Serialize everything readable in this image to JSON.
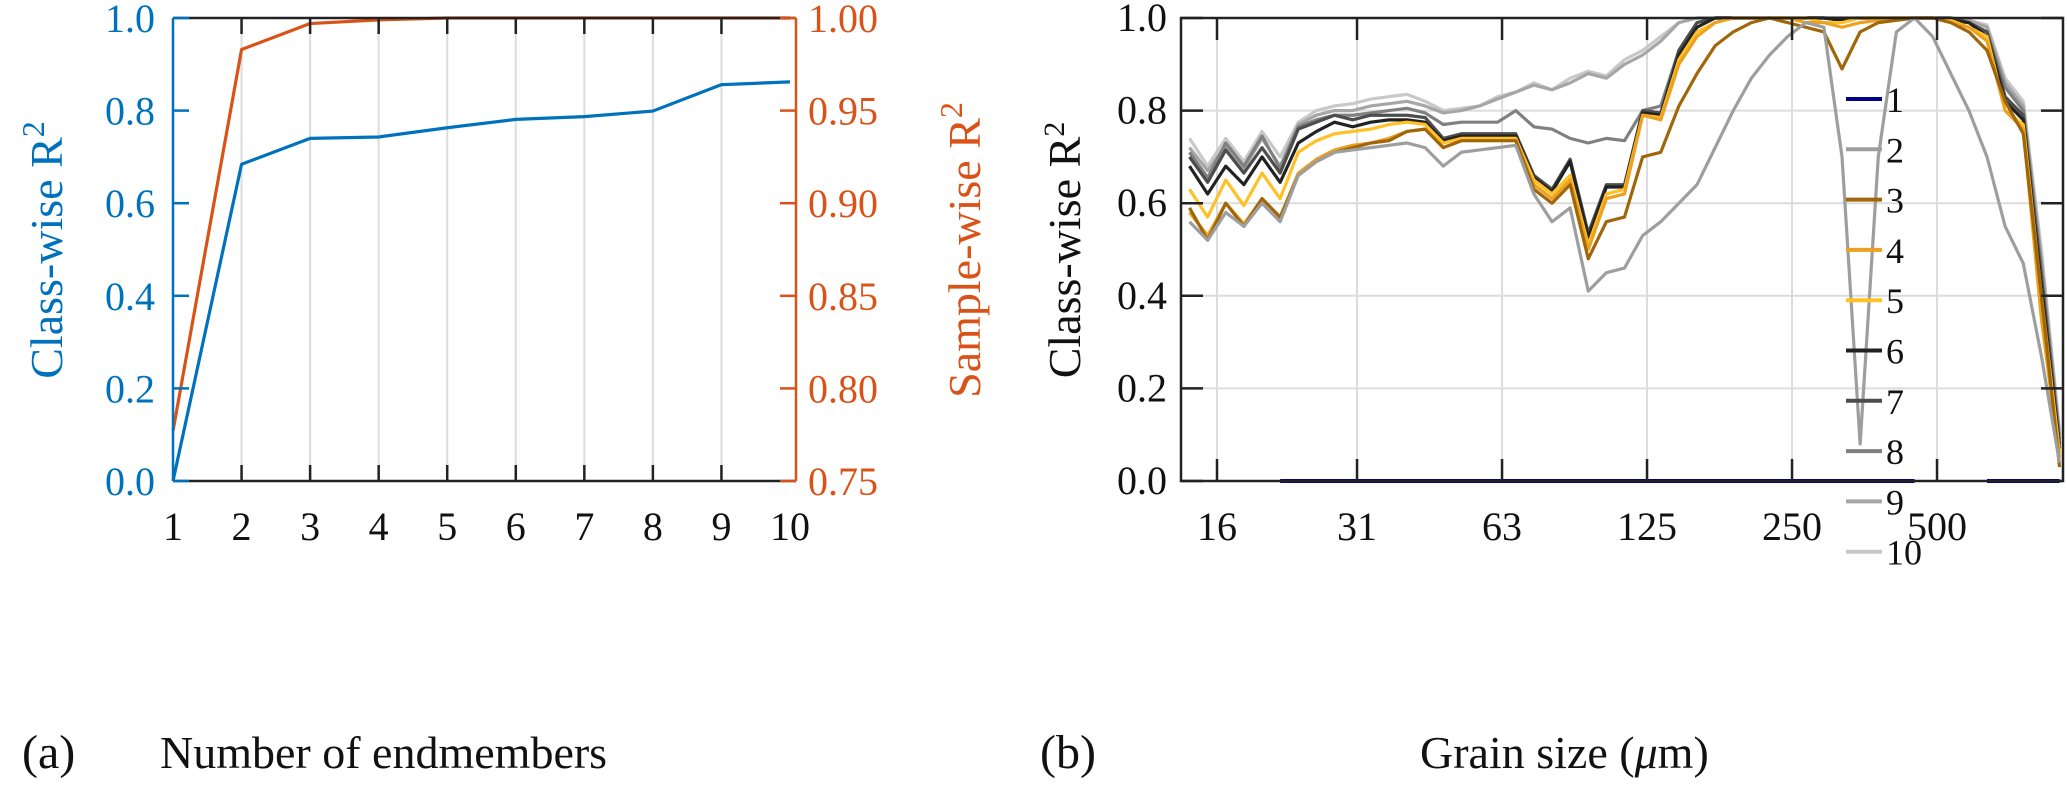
{
  "chart_data": [
    {
      "panel": "(a)",
      "type": "line",
      "title": "",
      "xlabel": "Number of endmembers",
      "ylabel_left": "Class-wise R",
      "ylabel_left_sup": "2",
      "ylabel_right": "Sample-wise R",
      "ylabel_right_sup": "2",
      "x": [
        1,
        2,
        3,
        4,
        5,
        6,
        7,
        8,
        9,
        10
      ],
      "xlim": [
        1,
        10
      ],
      "xticks": [
        "1",
        "2",
        "3",
        "4",
        "5",
        "6",
        "7",
        "8",
        "9",
        "10"
      ],
      "ylim_left": [
        0,
        1
      ],
      "yticks_left": [
        "0.0",
        "0.2",
        "0.4",
        "0.6",
        "0.8",
        "1.0"
      ],
      "ylim_right": [
        0.75,
        1.0
      ],
      "yticks_right": [
        "0.75",
        "0.80",
        "0.85",
        "0.90",
        "0.95",
        "1.00"
      ],
      "grid": "vertical",
      "series": [
        {
          "name": "Class-wise R2",
          "axis": "left",
          "color": "#0072BD",
          "values": [
            0.0,
            0.684,
            0.74,
            0.743,
            0.763,
            0.781,
            0.787,
            0.799,
            0.856,
            0.862
          ]
        },
        {
          "name": "Sample-wise R2",
          "axis": "right",
          "color": "#D95319",
          "values": [
            0.777,
            0.983,
            0.997,
            0.999,
            1.0,
            1.0,
            1.0,
            1.0,
            1.0,
            1.0
          ]
        }
      ]
    },
    {
      "panel": "(b)",
      "type": "line",
      "title": "",
      "xlabel": "Grain size (",
      "xlabel_mu": "μ",
      "xlabel_tail": "m)",
      "ylabel": "Class-wise R",
      "ylabel_sup": "2",
      "xscale": "log2",
      "xlim_um": [
        13.5,
        1000
      ],
      "xticks": [
        "16",
        "31",
        "63",
        "125",
        "250",
        "500"
      ],
      "xtick_values_um": [
        16,
        31.25,
        62.5,
        125,
        250,
        500
      ],
      "ylim": [
        0,
        1
      ],
      "yticks": [
        "0.0",
        "0.2",
        "0.4",
        "0.6",
        "0.8",
        "1.0"
      ],
      "grid": "both",
      "legend_position": "center-right",
      "points_per_octave": 8,
      "first_point_um": 14.03,
      "series": [
        {
          "name": "1",
          "color": "#00008B",
          "segments": [
            [
              5,
              40
            ],
            [
              44,
              48
            ]
          ],
          "constant": 0.0
        },
        {
          "name": "2",
          "color": "#9E9E9E",
          "values": [
            0.56,
            0.52,
            0.58,
            0.55,
            0.6,
            0.56,
            0.66,
            0.69,
            0.71,
            0.715,
            0.72,
            0.725,
            0.73,
            0.72,
            0.68,
            0.71,
            0.715,
            0.72,
            0.725,
            0.62,
            0.56,
            0.59,
            0.41,
            0.45,
            0.46,
            0.53,
            0.56,
            0.6,
            0.64,
            0.72,
            0.8,
            0.87,
            0.92,
            0.96,
            0.99,
            0.98,
            0.7,
            0.08,
            0.7,
            0.97,
            1.0,
            0.96,
            0.88,
            0.8,
            0.7,
            0.55,
            0.47,
            0.27,
            0.04
          ]
        },
        {
          "name": "3",
          "color": "#A0660A",
          "values": [
            0.59,
            0.52,
            0.6,
            0.55,
            0.61,
            0.57,
            0.66,
            0.69,
            0.71,
            0.72,
            0.73,
            0.735,
            0.755,
            0.76,
            0.72,
            0.735,
            0.735,
            0.735,
            0.735,
            0.63,
            0.6,
            0.64,
            0.48,
            0.56,
            0.57,
            0.7,
            0.71,
            0.81,
            0.88,
            0.94,
            0.97,
            0.99,
            1.0,
            0.99,
            0.98,
            0.97,
            0.89,
            0.97,
            0.99,
            0.995,
            1.0,
            1.0,
            0.99,
            0.97,
            0.93,
            0.82,
            0.75,
            0.4,
            0.03
          ]
        },
        {
          "name": "4",
          "color": "#EDA120",
          "values": [
            0.58,
            0.53,
            0.6,
            0.555,
            0.61,
            0.57,
            0.665,
            0.695,
            0.715,
            0.725,
            0.73,
            0.74,
            0.755,
            0.76,
            0.72,
            0.735,
            0.735,
            0.735,
            0.735,
            0.64,
            0.61,
            0.65,
            0.5,
            0.61,
            0.62,
            0.79,
            0.78,
            0.9,
            0.96,
            0.99,
            1.0,
            1.0,
            1.0,
            1.0,
            0.99,
            0.99,
            0.98,
            0.99,
            0.995,
            1.0,
            1.0,
            1.0,
            0.99,
            0.98,
            0.95,
            0.8,
            0.76,
            0.35,
            0.05
          ]
        },
        {
          "name": "5",
          "color": "#FFC125",
          "values": [
            0.63,
            0.57,
            0.65,
            0.595,
            0.665,
            0.61,
            0.71,
            0.735,
            0.75,
            0.755,
            0.76,
            0.77,
            0.775,
            0.77,
            0.73,
            0.74,
            0.74,
            0.74,
            0.74,
            0.65,
            0.62,
            0.66,
            0.51,
            0.62,
            0.63,
            0.79,
            0.785,
            0.91,
            0.97,
            0.99,
            1.0,
            1.0,
            1.0,
            1.0,
            1.0,
            0.99,
            0.99,
            1.0,
            1.0,
            1.0,
            1.0,
            1.0,
            0.995,
            0.98,
            0.96,
            0.8,
            0.77,
            0.4,
            0.06
          ]
        },
        {
          "name": "6",
          "color": "#222222",
          "values": [
            0.68,
            0.62,
            0.68,
            0.64,
            0.7,
            0.645,
            0.73,
            0.755,
            0.775,
            0.765,
            0.775,
            0.78,
            0.78,
            0.775,
            0.735,
            0.745,
            0.745,
            0.745,
            0.745,
            0.655,
            0.625,
            0.69,
            0.525,
            0.635,
            0.635,
            0.795,
            0.79,
            0.92,
            0.98,
            1.0,
            1.0,
            1.0,
            1.0,
            1.0,
            1.0,
            1.0,
            0.995,
            1.0,
            1.0,
            1.0,
            1.0,
            1.0,
            0.995,
            0.99,
            0.96,
            0.82,
            0.78,
            0.42,
            0.07
          ]
        },
        {
          "name": "7",
          "color": "#4D4D4D",
          "values": [
            0.7,
            0.645,
            0.715,
            0.665,
            0.72,
            0.665,
            0.76,
            0.775,
            0.79,
            0.78,
            0.79,
            0.79,
            0.79,
            0.785,
            0.74,
            0.75,
            0.75,
            0.75,
            0.75,
            0.66,
            0.63,
            0.695,
            0.535,
            0.64,
            0.64,
            0.8,
            0.795,
            0.93,
            0.99,
            1.0,
            1.0,
            1.0,
            1.0,
            1.0,
            1.0,
            1.0,
            0.995,
            1.0,
            1.0,
            1.0,
            1.0,
            1.0,
            1.0,
            0.99,
            0.97,
            0.83,
            0.79,
            0.44,
            0.08
          ]
        },
        {
          "name": "8",
          "color": "#808080",
          "values": [
            0.71,
            0.655,
            0.73,
            0.68,
            0.745,
            0.675,
            0.765,
            0.78,
            0.79,
            0.79,
            0.795,
            0.8,
            0.805,
            0.795,
            0.77,
            0.775,
            0.775,
            0.775,
            0.8,
            0.765,
            0.76,
            0.74,
            0.73,
            0.74,
            0.735,
            0.8,
            0.81,
            0.93,
            0.99,
            1.0,
            1.0,
            1.0,
            1.0,
            1.0,
            1.0,
            1.0,
            1.0,
            1.0,
            1.0,
            1.0,
            1.0,
            1.0,
            1.0,
            0.99,
            0.97,
            0.85,
            0.8,
            0.46,
            0.09
          ]
        },
        {
          "name": "9",
          "color": "#A6A6A6",
          "values": [
            0.72,
            0.67,
            0.725,
            0.675,
            0.74,
            0.68,
            0.77,
            0.79,
            0.8,
            0.8,
            0.81,
            0.815,
            0.82,
            0.81,
            0.795,
            0.8,
            0.81,
            0.825,
            0.84,
            0.855,
            0.845,
            0.86,
            0.88,
            0.87,
            0.9,
            0.92,
            0.95,
            0.99,
            1.0,
            1.0,
            1.0,
            1.0,
            1.0,
            1.0,
            1.0,
            1.0,
            1.0,
            1.0,
            1.0,
            1.0,
            1.0,
            1.0,
            1.0,
            0.995,
            0.98,
            0.86,
            0.81,
            0.48,
            0.1
          ]
        },
        {
          "name": "10",
          "color": "#C8C8C8",
          "values": [
            0.74,
            0.68,
            0.74,
            0.69,
            0.755,
            0.7,
            0.775,
            0.8,
            0.81,
            0.815,
            0.825,
            0.83,
            0.835,
            0.82,
            0.8,
            0.805,
            0.81,
            0.83,
            0.84,
            0.86,
            0.845,
            0.87,
            0.885,
            0.875,
            0.91,
            0.93,
            0.96,
            0.99,
            1.0,
            1.0,
            1.0,
            1.0,
            1.0,
            1.0,
            1.0,
            1.0,
            1.0,
            1.0,
            1.0,
            1.0,
            1.0,
            1.0,
            1.0,
            0.995,
            0.985,
            0.87,
            0.82,
            0.5,
            0.11
          ]
        }
      ]
    }
  ]
}
